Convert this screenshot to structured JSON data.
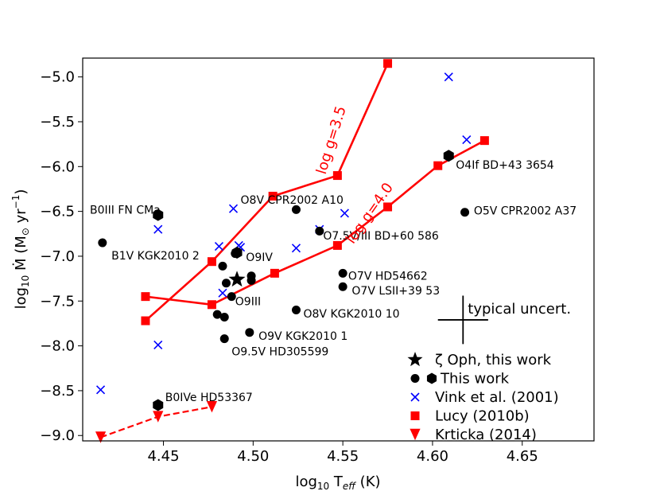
{
  "chart_data": {
    "type": "scatter",
    "title": "",
    "xlabel_main": "log",
    "xlabel_sub": "10",
    "xlabel_rest": " T",
    "xlabel_eff": "eff",
    "xlabel_unit": " (K)",
    "ylabel_main": "log",
    "ylabel_sub": "10",
    "ylabel_mdot": " Ṁ (M",
    "ylabel_sun": "⊙",
    "ylabel_rest": "  yr",
    "ylabel_exp": "−1",
    "ylabel_close": ")",
    "xlim": [
      4.405,
      4.69
    ],
    "ylim": [
      -9.06,
      -4.79
    ],
    "xticks": [
      4.45,
      4.5,
      4.55,
      4.6,
      4.65
    ],
    "xtick_labels": [
      "4.45",
      "4.50",
      "4.55",
      "4.60",
      "4.65"
    ],
    "yticks": [
      -5.0,
      -5.5,
      -6.0,
      -6.5,
      -7.0,
      -7.5,
      -8.0,
      -8.5,
      -9.0
    ],
    "ytick_labels": [
      "−5.0",
      "−5.5",
      "−6.0",
      "−6.5",
      "−7.0",
      "−7.5",
      "−8.0",
      "−8.5",
      "−9.0"
    ],
    "zeta_oph": {
      "x": 4.491,
      "y": -7.26
    },
    "this_work_circles": [
      [
        4.416,
        -6.85
      ],
      [
        4.483,
        -7.11
      ],
      [
        4.49,
        -6.97
      ],
      [
        4.499,
        -7.22
      ],
      [
        4.499,
        -7.27
      ],
      [
        4.488,
        -7.45
      ],
      [
        4.485,
        -7.3
      ],
      [
        4.48,
        -7.65
      ],
      [
        4.484,
        -7.68
      ],
      [
        4.484,
        -7.92
      ],
      [
        4.498,
        -7.85
      ],
      [
        4.524,
        -6.48
      ],
      [
        4.537,
        -6.72
      ],
      [
        4.524,
        -7.6
      ],
      [
        4.55,
        -7.19
      ],
      [
        4.55,
        -7.34
      ],
      [
        4.618,
        -6.51
      ]
    ],
    "this_work_hexagons": [
      [
        4.447,
        -6.54
      ],
      [
        4.491,
        -6.96
      ],
      [
        4.609,
        -5.88
      ],
      [
        4.447,
        -8.66
      ]
    ],
    "vink_points": [
      [
        4.447,
        -6.7
      ],
      [
        4.489,
        -6.47
      ],
      [
        4.481,
        -6.89
      ],
      [
        4.492,
        -6.88
      ],
      [
        4.493,
        -6.9
      ],
      [
        4.483,
        -7.41
      ],
      [
        4.447,
        -7.99
      ],
      [
        4.415,
        -8.49
      ],
      [
        4.524,
        -6.91
      ],
      [
        4.537,
        -6.7
      ],
      [
        4.551,
        -6.52
      ],
      [
        4.609,
        -5.0
      ],
      [
        4.619,
        -5.7
      ]
    ],
    "lucy_logg35": [
      [
        4.44,
        -7.72
      ],
      [
        4.477,
        -7.06
      ],
      [
        4.511,
        -6.33
      ],
      [
        4.547,
        -6.1
      ],
      [
        4.575,
        -4.85
      ]
    ],
    "lucy_logg40": [
      [
        4.44,
        -7.45
      ],
      [
        4.477,
        -7.54
      ],
      [
        4.512,
        -7.19
      ],
      [
        4.547,
        -6.88
      ],
      [
        4.575,
        -6.45
      ],
      [
        4.603,
        -5.99
      ],
      [
        4.629,
        -5.71
      ]
    ],
    "krticka": [
      [
        4.415,
        -9.02
      ],
      [
        4.447,
        -8.79
      ],
      [
        4.477,
        -8.68
      ]
    ],
    "uncertainty_cross": {
      "x": 4.617,
      "y": -7.71,
      "dx": 0.014,
      "dy": 0.27,
      "label": "typical uncert."
    },
    "line_labels": [
      {
        "text": "log g=3.5",
        "x": 4.546,
        "y": -5.72,
        "angle": -73
      },
      {
        "text": "log g=4.0",
        "x": 4.567,
        "y": -6.55,
        "angle": -55
      }
    ],
    "annotations": [
      {
        "text": "B0III FN CMa",
        "x": 4.409,
        "y": -6.48
      },
      {
        "text": "B1V KGK2010 2",
        "x": 4.421,
        "y": -6.99
      },
      {
        "text": "O8V CPR2002 A10",
        "x": 4.493,
        "y": -6.37
      },
      {
        "text": "O9IV",
        "x": 4.496,
        "y": -7.01
      },
      {
        "text": "O7.5V/III BD+60 586",
        "x": 4.539,
        "y": -6.77
      },
      {
        "text": "O9III",
        "x": 4.49,
        "y": -7.5
      },
      {
        "text": "O7V HD54662",
        "x": 4.553,
        "y": -7.22
      },
      {
        "text": "O7V LSII+39 53",
        "x": 4.555,
        "y": -7.38
      },
      {
        "text": "O8V KGK2010 10",
        "x": 4.528,
        "y": -7.64
      },
      {
        "text": "O9V KGK2010 1",
        "x": 4.503,
        "y": -7.89
      },
      {
        "text": "O9.5V HD305599",
        "x": 4.488,
        "y": -8.06
      },
      {
        "text": "O4If BD+43 3654",
        "x": 4.613,
        "y": -5.98
      },
      {
        "text": "O5V CPR2002 A37",
        "x": 4.623,
        "y": -6.49
      },
      {
        "text": "B0IVe HD53367",
        "x": 4.451,
        "y": -8.57
      }
    ],
    "legend": [
      {
        "label": "ζ Oph, this work",
        "marker": "star"
      },
      {
        "label": " This work",
        "marker": "circle-hex"
      },
      {
        "label": "Vink et al. (2001)",
        "marker": "x"
      },
      {
        "label": "Lucy (2010b)",
        "marker": "square"
      },
      {
        "label": "Krticka (2014)",
        "marker": "triangle"
      }
    ],
    "legend_position": "lower-right",
    "colors": {
      "this_work": "#000000",
      "vink": "#0000ff",
      "lucy": "#ff0000",
      "krticka": "#ff0000"
    }
  }
}
